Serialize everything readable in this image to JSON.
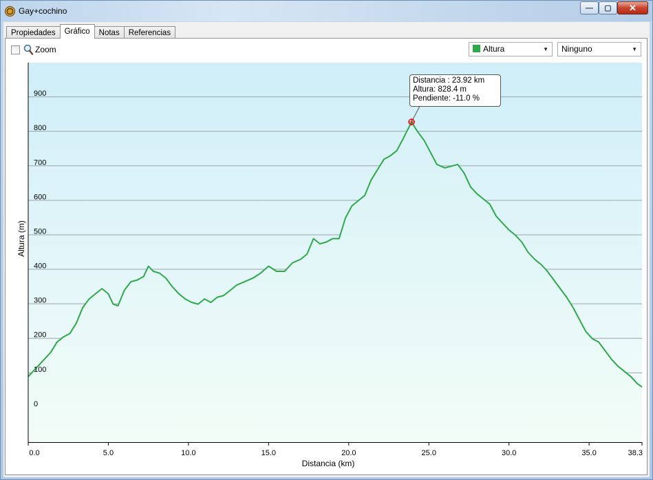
{
  "window": {
    "title": "Gay+cochino",
    "minimize_glyph": "—",
    "maximize_glyph": "▢",
    "close_glyph": "✕"
  },
  "tabs": [
    {
      "label": "Propiedades",
      "active": false
    },
    {
      "label": "Gráfico",
      "active": true
    },
    {
      "label": "Notas",
      "active": false
    },
    {
      "label": "Referencias",
      "active": false
    }
  ],
  "toolbar": {
    "zoom_label": "Zoom",
    "zoom_checked": false,
    "series_select": "Altura",
    "secondary_select": "Ninguno"
  },
  "tooltip": {
    "distance": "Distancia  : 23.92 km",
    "altitude": "Altura: 828.4 m",
    "slope": "Pendiente: -11.0 %"
  },
  "colors": {
    "line": "#2ea84b",
    "fill_top": "#d7f1f7",
    "fill_bottom": "#f2fdf7",
    "plot_bg_top": "#cfeef8",
    "plot_bg_bottom": "#f5fdfa",
    "grid": "#9aa4ab"
  },
  "chart_data": {
    "type": "area",
    "xlabel": "Distancia  (km)",
    "ylabel": "Altura (m)",
    "xlim": [
      0,
      38.3
    ],
    "ylim": [
      -100,
      1000
    ],
    "x_ticks": [
      "0.0",
      "5.0",
      "10.0",
      "15.0",
      "20.0",
      "25.0",
      "30.0",
      "35.0",
      "38.3"
    ],
    "x_tick_values": [
      0,
      5,
      10,
      15,
      20,
      25,
      30,
      35,
      38.3
    ],
    "y_ticks": [
      "0",
      "100",
      "200",
      "300",
      "400",
      "500",
      "600",
      "700",
      "800",
      "900"
    ],
    "y_tick_values": [
      0,
      100,
      200,
      300,
      400,
      500,
      600,
      700,
      800,
      900
    ],
    "grid": true,
    "marker": {
      "x": 23.92,
      "y": 828.4
    },
    "series": [
      {
        "values_x": [
          0,
          0.3,
          0.6,
          1.0,
          1.4,
          1.8,
          2.2,
          2.6,
          3.0,
          3.4,
          3.8,
          4.2,
          4.6,
          5.0,
          5.3,
          5.6,
          6.0,
          6.4,
          6.8,
          7.2,
          7.5,
          7.8,
          8.2,
          8.6,
          9.0,
          9.4,
          9.8,
          10.2,
          10.6,
          11.0,
          11.4,
          11.8,
          12.2,
          12.6,
          13.0,
          13.5,
          14.0,
          14.5,
          15.0,
          15.5,
          16.0,
          16.5,
          17.0,
          17.4,
          17.8,
          18.2,
          18.6,
          19.0,
          19.4,
          19.8,
          20.2,
          20.6,
          21.0,
          21.4,
          21.8,
          22.2,
          22.6,
          23.0,
          23.4,
          23.92,
          24.3,
          24.7,
          25.1,
          25.5,
          26.0,
          26.4,
          26.8,
          27.2,
          27.6,
          28.0,
          28.4,
          28.8,
          29.2,
          29.6,
          30.0,
          30.4,
          30.8,
          31.2,
          31.6,
          32.0,
          32.4,
          32.8,
          33.2,
          33.6,
          34.0,
          34.4,
          34.8,
          35.2,
          35.6,
          36.0,
          36.4,
          36.8,
          37.2,
          37.6,
          38.0,
          38.3
        ],
        "values_y": [
          90,
          105,
          120,
          140,
          160,
          190,
          205,
          215,
          245,
          290,
          315,
          330,
          345,
          330,
          300,
          295,
          340,
          365,
          370,
          380,
          410,
          395,
          390,
          375,
          350,
          330,
          315,
          305,
          300,
          315,
          305,
          320,
          325,
          340,
          355,
          365,
          375,
          390,
          410,
          395,
          395,
          420,
          430,
          445,
          490,
          475,
          480,
          490,
          490,
          550,
          585,
          600,
          615,
          660,
          690,
          720,
          730,
          745,
          780,
          828,
          800,
          775,
          740,
          705,
          695,
          700,
          705,
          680,
          640,
          620,
          605,
          590,
          555,
          535,
          515,
          500,
          480,
          450,
          430,
          415,
          395,
          370,
          345,
          320,
          290,
          255,
          220,
          200,
          190,
          165,
          140,
          120,
          105,
          90,
          70,
          60
        ]
      }
    ]
  }
}
